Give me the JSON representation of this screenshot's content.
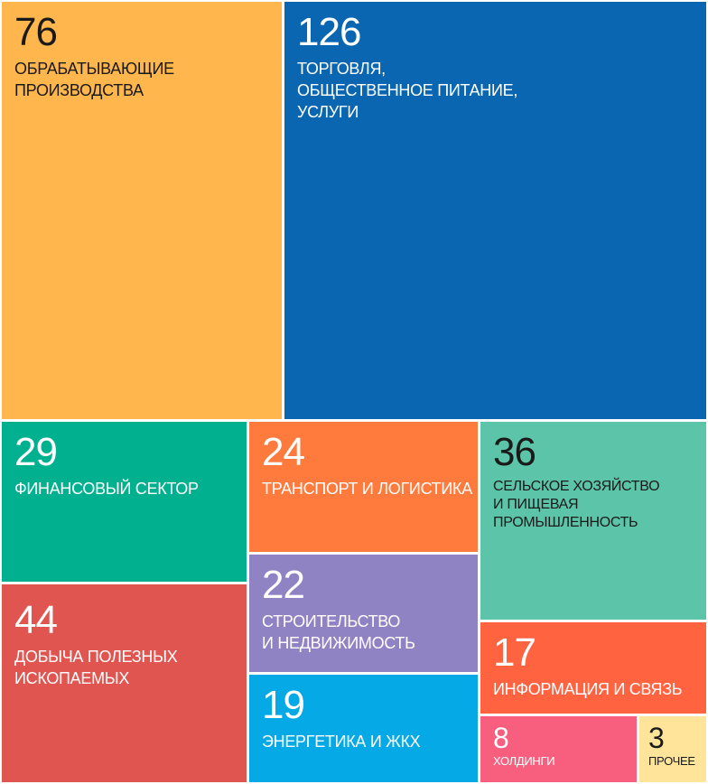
{
  "chart_data": {
    "type": "treemap",
    "title": "",
    "items": [
      {
        "value": "76",
        "label": "ОБРАБАТЫВАЮЩИЕ\nПРОИЗВОДСТВА",
        "color": "#FFB74D",
        "text_color": "#1a1a1a"
      },
      {
        "value": "126",
        "label": "ТОРГОВЛЯ,\nОБЩЕСТВЕННОЕ ПИТАНИЕ,\nУСЛУГИ",
        "color": "#0A66B0",
        "text_color": "#ffffff"
      },
      {
        "value": "29",
        "label": "ФИНАНСОВЫЙ СЕКТОР",
        "color": "#00B08E",
        "text_color": "#ffffff"
      },
      {
        "value": "24",
        "label": "ТРАНСПОРТ И ЛОГИСТИКА",
        "color": "#FF7A3D",
        "text_color": "#ffffff"
      },
      {
        "value": "36",
        "label": "СЕЛЬСКОЕ ХОЗЯЙСТВО\nИ ПИЩЕВАЯ\nПРОМЫШЛЕННОСТЬ",
        "color": "#5CC4A8",
        "text_color": "#1a1a1a"
      },
      {
        "value": "44",
        "label": "ДОБЫЧА ПОЛЕЗНЫХ\nИСКОПАЕМЫХ",
        "color": "#E05550",
        "text_color": "#ffffff"
      },
      {
        "value": "22",
        "label": "СТРОИТЕЛЬСТВО\nИ НЕДВИЖИМОСТЬ",
        "color": "#9083C4",
        "text_color": "#ffffff"
      },
      {
        "value": "17",
        "label": "ИНФОРМАЦИЯ И СВЯЗЬ",
        "color": "#FF6340",
        "text_color": "#ffffff"
      },
      {
        "value": "19",
        "label": "ЭНЕРГЕТИКА И ЖКХ",
        "color": "#05A9E5",
        "text_color": "#ffffff"
      },
      {
        "value": "8",
        "label": "ХОЛДИНГИ",
        "color": "#F85F7E",
        "text_color": "#ffffff"
      },
      {
        "value": "3",
        "label": "ПРОЧЕЕ",
        "color": "#FFE49A",
        "text_color": "#1a1a1a"
      }
    ]
  }
}
